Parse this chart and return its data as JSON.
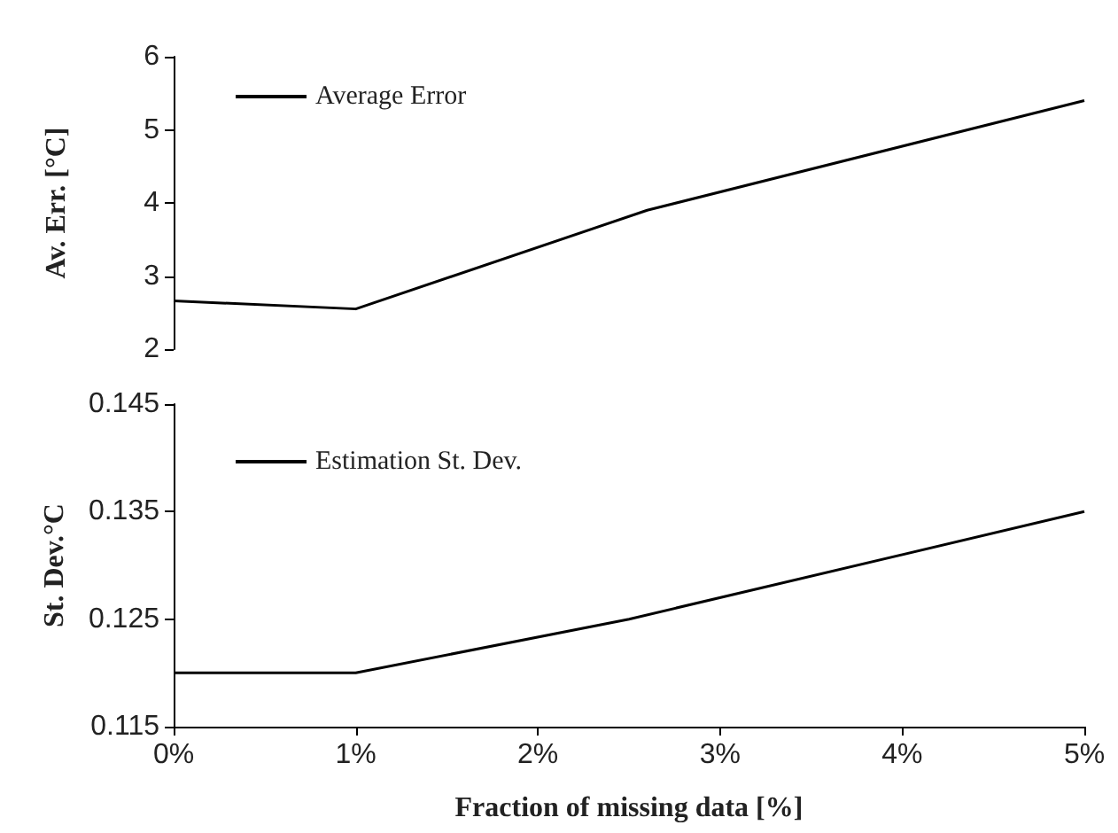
{
  "chart_data": [
    {
      "type": "line",
      "ylabel": "Av. Err. [°C]",
      "x": [
        0,
        1,
        2.6,
        5
      ],
      "series": [
        {
          "name": "Average Error",
          "color": "#000000",
          "values": [
            2.66,
            2.55,
            3.9,
            5.4
          ]
        }
      ],
      "xlim": [
        0,
        5
      ],
      "ylim": [
        2,
        6
      ],
      "yticks": [
        2,
        3,
        4,
        5,
        6
      ],
      "tick_labels": "y",
      "legend": "top left",
      "grid": false,
      "marker": "none",
      "line_style": "solid"
    },
    {
      "type": "line",
      "xlabel": "Fraction of missing data [%]",
      "ylabel": "St. Dev.°C",
      "x": [
        0,
        1,
        2.5,
        5
      ],
      "series": [
        {
          "name": "Estimation St. Dev.",
          "color": "#000000",
          "values": [
            0.12,
            0.12,
            0.125,
            0.135
          ]
        }
      ],
      "xlim": [
        0,
        5
      ],
      "xticks": [
        {
          "value": 0,
          "label": "0%"
        },
        {
          "value": 1,
          "label": "1%"
        },
        {
          "value": 2,
          "label": "2%"
        },
        {
          "value": 3,
          "label": "3%"
        },
        {
          "value": 4,
          "label": "4%"
        },
        {
          "value": 5,
          "label": "5%"
        }
      ],
      "ylim": [
        0.115,
        0.145
      ],
      "yticks": [
        0.115,
        0.125,
        0.135,
        0.145
      ],
      "legend": "top left",
      "grid": false,
      "marker": "none",
      "line_style": "solid"
    }
  ]
}
